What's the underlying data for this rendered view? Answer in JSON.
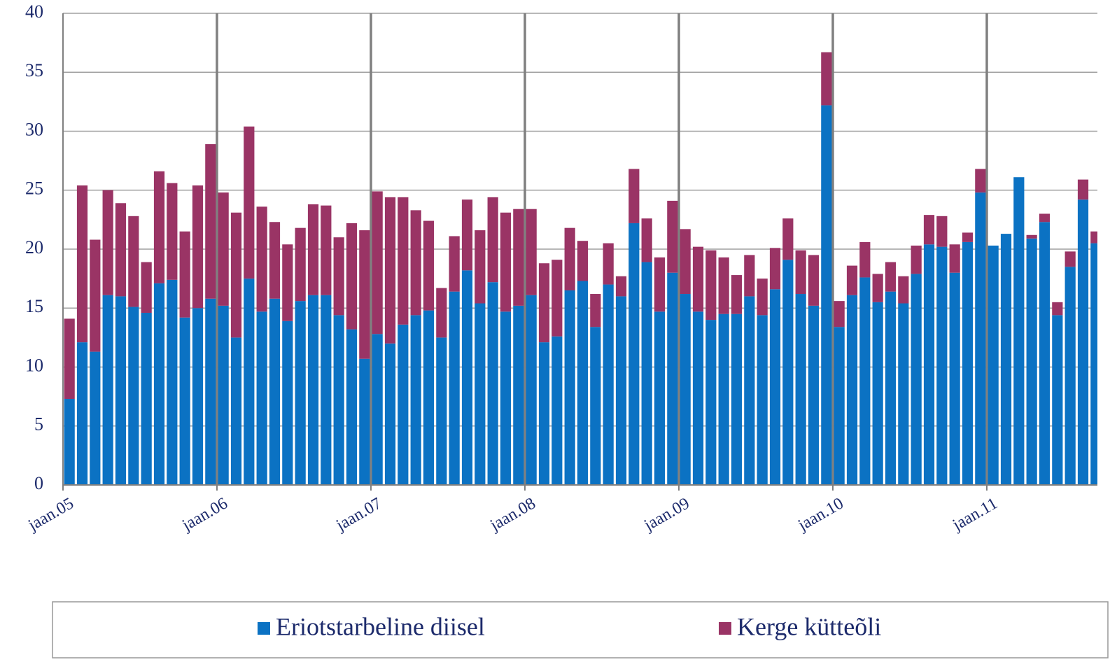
{
  "chart_data": {
    "type": "stacked-bar",
    "categories": [
      "jaan.05",
      null,
      null,
      null,
      null,
      null,
      null,
      null,
      null,
      null,
      null,
      null,
      "jaan.06",
      null,
      null,
      null,
      null,
      null,
      null,
      null,
      null,
      null,
      null,
      null,
      "jaan.07",
      null,
      null,
      null,
      null,
      null,
      null,
      null,
      null,
      null,
      null,
      null,
      "jaan.08",
      null,
      null,
      null,
      null,
      null,
      null,
      null,
      null,
      null,
      null,
      null,
      "jaan.09",
      null,
      null,
      null,
      null,
      null,
      null,
      null,
      null,
      null,
      null,
      null,
      "jaan.10",
      null,
      null,
      null,
      null,
      null,
      null,
      null,
      null,
      null,
      null,
      null,
      "jaan.11",
      null,
      null,
      null,
      null,
      null,
      null,
      null,
      null
    ],
    "series": [
      {
        "name": "Eriotstarbeline diisel",
        "color": "#0b72c3",
        "values": [
          7.3,
          12.1,
          11.3,
          16.1,
          16.0,
          15.1,
          14.6,
          17.1,
          17.4,
          14.2,
          15.0,
          15.8,
          15.2,
          12.5,
          17.5,
          14.7,
          15.8,
          13.9,
          15.6,
          16.1,
          16.1,
          14.4,
          13.2,
          10.7,
          12.8,
          12.0,
          13.6,
          14.4,
          14.8,
          12.5,
          16.4,
          18.2,
          15.4,
          17.2,
          14.7,
          15.2,
          16.1,
          12.1,
          12.6,
          16.5,
          17.3,
          13.4,
          17.0,
          16.0,
          22.2,
          18.9,
          14.7,
          18.0,
          16.2,
          14.7,
          14.0,
          14.5,
          14.5,
          16.0,
          14.4,
          16.6,
          19.1,
          16.2,
          15.2,
          32.2,
          13.4,
          16.1,
          17.6,
          15.5,
          16.4,
          15.4,
          17.9,
          20.4,
          20.2,
          18.0,
          20.6,
          24.8,
          20.3,
          21.3,
          26.1,
          20.9,
          22.3,
          14.4,
          18.5,
          24.2,
          20.5
        ]
      },
      {
        "name": "Kerge kütteõli",
        "color": "#9a3465",
        "values": [
          6.8,
          13.3,
          9.5,
          8.9,
          7.9,
          7.7,
          4.3,
          9.5,
          8.2,
          7.3,
          10.4,
          13.1,
          9.6,
          10.6,
          12.9,
          8.9,
          6.5,
          6.5,
          6.2,
          7.7,
          7.6,
          6.6,
          9.0,
          10.9,
          12.1,
          12.4,
          10.8,
          8.9,
          7.6,
          4.2,
          4.7,
          6.0,
          6.2,
          7.2,
          8.4,
          8.2,
          7.3,
          6.7,
          6.5,
          5.3,
          3.4,
          2.8,
          3.5,
          1.7,
          4.6,
          3.7,
          4.6,
          6.1,
          5.5,
          5.5,
          5.9,
          4.8,
          3.3,
          3.5,
          3.1,
          3.5,
          3.5,
          3.7,
          4.3,
          4.5,
          2.2,
          2.5,
          3.0,
          2.4,
          2.5,
          2.3,
          2.4,
          2.5,
          2.6,
          2.4,
          0.8,
          2.0,
          0,
          0,
          0,
          0.3,
          0.7,
          1.1,
          1.3,
          1.7,
          1.0
        ]
      }
    ],
    "ylim": [
      0,
      40
    ],
    "yticks": [
      0,
      5,
      10,
      15,
      20,
      25,
      30,
      35,
      40
    ],
    "grid": true,
    "legend": "bottom"
  }
}
